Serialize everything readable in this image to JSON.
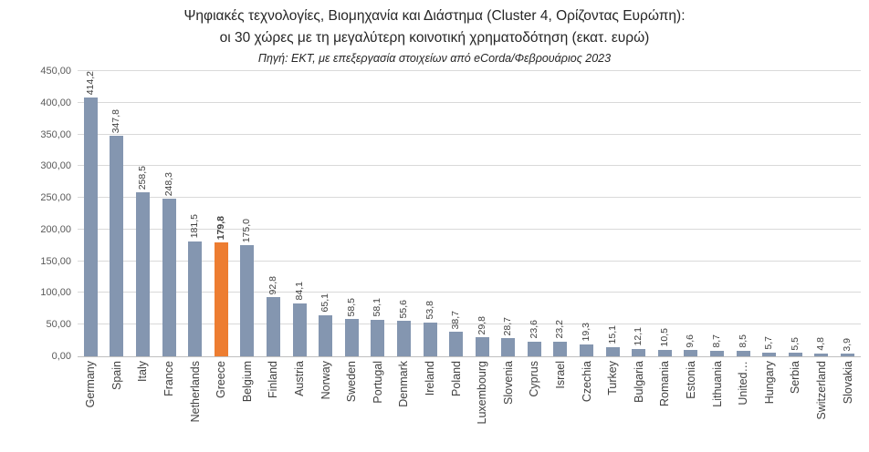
{
  "title": {
    "line1": "Ψηφιακές τεχνολογίες, Βιομηχανία και Διάστημα (Cluster 4, Ορίζοντας Ευρώπη):",
    "line2": "οι 30 χώρες με τη μεγαλύτερη κοινοτική χρηματοδότηση (εκατ. ευρώ)",
    "source": "Πηγή: ΕΚΤ, με επεξεργασία στοιχείων από eCorda/Φεβρουάριος 2023"
  },
  "colors": {
    "bar": "#8496B0",
    "highlight": "#ED7D31",
    "gridline": "#D9D9D9",
    "axis_line": "#BFBFBF",
    "tick_text": "#595959",
    "label_text": "#404040"
  },
  "chart_data": {
    "type": "bar",
    "title": "Ψηφιακές τεχνολογίες, Βιομηχανία και Διάστημα (Cluster 4, Ορίζοντας Ευρώπη): οι 30 χώρες με τη μεγαλύτερη κοινοτική χρηματοδότηση (εκατ. ευρώ)",
    "subtitle": "Πηγή: ΕΚΤ, με επεξεργασία στοιχείων από eCorda/Φεβρουάριος 2023",
    "xlabel": "",
    "ylabel": "",
    "ylim": [
      0,
      450
    ],
    "grid": true,
    "legend": "none",
    "categories": [
      "Germany",
      "Spain",
      "Italy",
      "France",
      "Netherlands",
      "Greece",
      "Belgium",
      "Finland",
      "Austria",
      "Norway",
      "Sweden",
      "Portugal",
      "Denmark",
      "Ireland",
      "Poland",
      "Luxembourg",
      "Slovenia",
      "Cyprus",
      "Israel",
      "Czechia",
      "Turkey",
      "Bulgaria",
      "Romania",
      "Estonia",
      "Lithuania",
      "United…",
      "Hungary",
      "Serbia",
      "Switzerland",
      "Slovakia"
    ],
    "values": [
      414.2,
      347.8,
      258.5,
      248.3,
      181.5,
      179.8,
      175.0,
      92.8,
      84.1,
      65.1,
      58.5,
      58.1,
      55.6,
      53.8,
      38.7,
      29.8,
      28.7,
      23.6,
      23.2,
      19.3,
      15.1,
      12.1,
      10.5,
      9.6,
      8.7,
      8.5,
      5.7,
      5.5,
      4.8,
      3.9
    ],
    "value_labels": [
      "414,2",
      "347,8",
      "258,5",
      "248,3",
      "181,5",
      "179,8",
      "175,0",
      "92,8",
      "84,1",
      "65,1",
      "58,5",
      "58,1",
      "55,6",
      "53,8",
      "38,7",
      "29,8",
      "28,7",
      "23,6",
      "23,2",
      "19,3",
      "15,1",
      "12,1",
      "10,5",
      "9,6",
      "8,7",
      "8,5",
      "5,7",
      "5,5",
      "4,8",
      "3,9"
    ],
    "highlight_category": "Greece",
    "highlight_index": 5,
    "y_tick_values": [
      0,
      50,
      100,
      150,
      200,
      250,
      300,
      350,
      400,
      450
    ],
    "y_tick_labels": [
      "0,00",
      "50,00",
      "100,00",
      "150,00",
      "200,00",
      "250,00",
      "300,00",
      "350,00",
      "400,00",
      "450,00"
    ]
  }
}
